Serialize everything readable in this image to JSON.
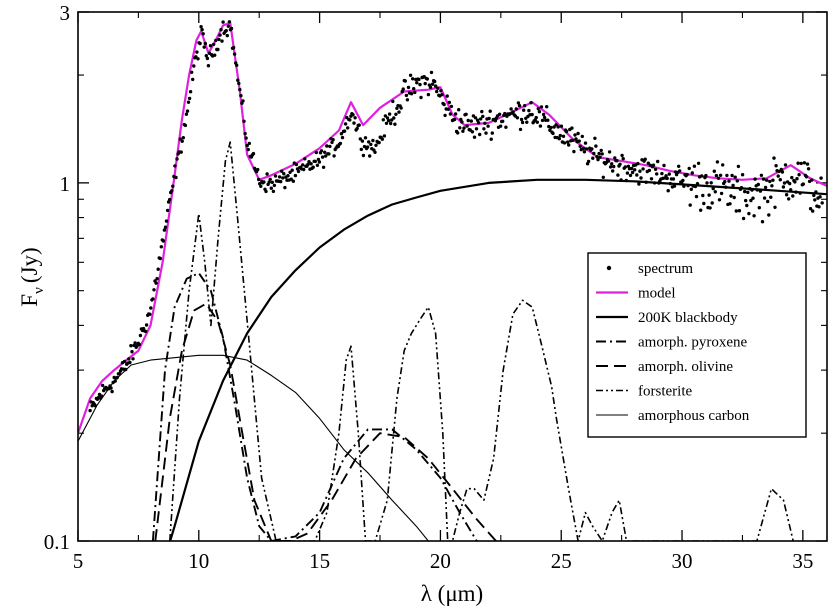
{
  "chart_data": {
    "type": "line",
    "x_scale": "linear",
    "y_scale": "log",
    "xlim": [
      5,
      36
    ],
    "ylim": [
      0.1,
      3
    ],
    "xlabel": "λ (μm)",
    "ylabel_main": "F",
    "ylabel_sub": "ν",
    "ylabel_unit": "(Jy)",
    "x_ticks": [
      5,
      10,
      15,
      20,
      25,
      30,
      35
    ],
    "x_tick_labels": [
      "5",
      "10",
      "15",
      "20",
      "25",
      "30",
      "35"
    ],
    "y_ticks": [
      0.1,
      1,
      3
    ],
    "y_tick_labels": [
      "0.1",
      "1",
      "3"
    ],
    "legend_position": "right",
    "colors": {
      "model": "#e020e0",
      "black": "#000000"
    },
    "legend": [
      {
        "key": "spectrum",
        "label": "spectrum",
        "symbol": "dot"
      },
      {
        "key": "model",
        "label": "model",
        "symbol": "line"
      },
      {
        "key": "bb",
        "label": "200K blackbody",
        "symbol": "line"
      },
      {
        "key": "pyrox",
        "label": "amorph. pyroxene",
        "symbol": "line"
      },
      {
        "key": "olivine",
        "label": "amorph. olivine",
        "symbol": "line"
      },
      {
        "key": "forst",
        "label": "forsterite",
        "symbol": "line"
      },
      {
        "key": "carbon",
        "label": "amorphous carbon",
        "symbol": "line"
      }
    ],
    "series": [
      {
        "key": "model",
        "name": "model",
        "color": "#e020e0",
        "width": 2.2,
        "dash": "",
        "x": [
          5,
          5.5,
          6,
          6.5,
          7,
          7.5,
          8,
          8.5,
          9,
          9.3,
          9.6,
          9.9,
          10.1,
          10.4,
          10.7,
          11,
          11.3,
          11.7,
          12,
          12.5,
          13,
          14,
          15,
          15.8,
          16.3,
          16.8,
          17.5,
          18.5,
          19.5,
          20,
          20.5,
          21,
          22,
          23,
          23.8,
          24.5,
          25.5,
          26.5,
          27.5,
          28.5,
          29.5,
          30.5,
          31.5,
          32.5,
          33.5,
          34.5,
          35.3,
          36
        ],
        "y": [
          0.2,
          0.25,
          0.28,
          0.3,
          0.32,
          0.34,
          0.4,
          0.6,
          1.05,
          1.5,
          2.0,
          2.5,
          2.65,
          2.3,
          2.5,
          2.75,
          2.8,
          1.8,
          1.2,
          1.02,
          1.05,
          1.13,
          1.25,
          1.4,
          1.68,
          1.45,
          1.62,
          1.8,
          1.82,
          1.85,
          1.55,
          1.45,
          1.47,
          1.58,
          1.68,
          1.55,
          1.32,
          1.18,
          1.15,
          1.12,
          1.08,
          1.05,
          1.03,
          1.02,
          1.03,
          1.12,
          1.03,
          0.98
        ]
      },
      {
        "key": "bb",
        "name": "200K blackbody",
        "color": "#000000",
        "width": 2.2,
        "dash": "",
        "x": [
          8.5,
          9,
          10,
          11,
          12,
          13,
          14,
          15,
          16,
          17,
          18,
          19,
          20,
          22,
          24,
          26,
          28,
          30,
          32,
          34,
          36
        ],
        "y": [
          0.085,
          0.11,
          0.19,
          0.28,
          0.38,
          0.48,
          0.57,
          0.66,
          0.74,
          0.81,
          0.87,
          0.91,
          0.95,
          1.0,
          1.02,
          1.02,
          1.01,
          0.99,
          0.97,
          0.95,
          0.93
        ]
      },
      {
        "key": "pyrox",
        "name": "amorph. pyroxene",
        "color": "#000000",
        "width": 1.9,
        "dash": "10 4 2 4",
        "x": [
          8.1,
          8.6,
          9,
          9.5,
          10,
          10.5,
          11,
          11.5,
          12,
          12.5,
          13,
          14,
          15,
          16,
          17,
          18,
          19,
          20,
          20.8,
          21.5
        ],
        "y": [
          0.1,
          0.3,
          0.45,
          0.54,
          0.56,
          0.5,
          0.37,
          0.24,
          0.15,
          0.11,
          0.1,
          0.103,
          0.12,
          0.17,
          0.205,
          0.205,
          0.18,
          0.15,
          0.12,
          0.1
        ]
      },
      {
        "key": "olivine",
        "name": "amorph. olivine",
        "color": "#000000",
        "width": 1.9,
        "dash": "12 6",
        "x": [
          8.2,
          8.8,
          9.3,
          9.8,
          10.3,
          10.8,
          11.3,
          11.8,
          12.3,
          13,
          13.8,
          14.5,
          15.5,
          16.5,
          17.5,
          18.5,
          19.5,
          20.5,
          21.5,
          22.3
        ],
        "y": [
          0.1,
          0.22,
          0.34,
          0.44,
          0.46,
          0.41,
          0.31,
          0.2,
          0.13,
          0.1,
          0.1,
          0.105,
          0.13,
          0.17,
          0.2,
          0.195,
          0.17,
          0.14,
          0.115,
          0.1
        ]
      },
      {
        "key": "forst",
        "name": "forsterite",
        "color": "#000000",
        "width": 1.6,
        "dash": "7 3 2 3 2 3",
        "x": [
          8.8,
          9.2,
          9.6,
          10,
          10.25,
          10.5,
          10.8,
          11.1,
          11.3,
          11.6,
          12.1,
          12.6,
          13.2,
          14,
          14.8,
          15.3,
          15.8,
          16.1,
          16.3,
          16.6,
          16.9,
          17.3,
          17.8,
          18.2,
          18.5,
          18.8,
          19.2,
          19.5,
          19.8,
          20.1,
          20.3,
          20.5,
          20.8,
          21.1,
          21.4,
          21.8,
          22.2,
          22.6,
          23,
          23.4,
          23.8,
          24.2,
          24.6,
          24.8,
          25.3,
          25.7,
          26,
          26.3,
          26.7,
          27.1,
          27.4,
          27.7,
          28.1,
          28.5,
          30,
          32,
          33.1,
          33.7,
          34.2,
          34.6
        ],
        "y": [
          0.1,
          0.25,
          0.5,
          0.82,
          0.6,
          0.4,
          0.7,
          1.15,
          1.3,
          0.8,
          0.35,
          0.15,
          0.1,
          0.1,
          0.1,
          0.12,
          0.2,
          0.32,
          0.35,
          0.2,
          0.1,
          0.1,
          0.13,
          0.25,
          0.34,
          0.38,
          0.42,
          0.45,
          0.38,
          0.2,
          0.1,
          0.1,
          0.12,
          0.14,
          0.14,
          0.13,
          0.17,
          0.3,
          0.43,
          0.47,
          0.45,
          0.35,
          0.27,
          0.22,
          0.14,
          0.1,
          0.12,
          0.11,
          0.1,
          0.12,
          0.13,
          0.1,
          0.1,
          0.1,
          0.1,
          0.1,
          0.1,
          0.14,
          0.13,
          0.1
        ]
      },
      {
        "key": "carbon",
        "name": "amorphous carbon",
        "color": "#000000",
        "width": 1.1,
        "dash": "",
        "x": [
          5,
          5.8,
          6.5,
          7.2,
          8,
          9,
          10,
          11,
          12,
          13,
          14,
          15,
          16,
          17,
          18,
          19,
          19.5
        ],
        "y": [
          0.19,
          0.24,
          0.28,
          0.31,
          0.32,
          0.325,
          0.33,
          0.33,
          0.32,
          0.29,
          0.26,
          0.22,
          0.18,
          0.155,
          0.13,
          0.11,
          0.1
        ]
      }
    ],
    "spectrum_trend": {
      "name": "spectrum",
      "x": [
        5.5,
        6,
        6.5,
        7,
        7.5,
        8,
        8.5,
        9,
        9.5,
        9.8,
        10.1,
        10.4,
        10.7,
        11,
        11.3,
        11.6,
        12,
        12.5,
        13,
        14,
        15,
        15.8,
        16.3,
        16.8,
        17.3,
        17.8,
        18.5,
        19.2,
        19.7,
        20.2,
        20.7,
        21.2,
        22,
        23,
        23.7,
        24.5,
        25.5,
        26.5,
        27.5,
        28.5,
        29.5,
        30.5,
        31.5,
        32.5,
        33.5,
        34.3,
        35,
        35.8
      ],
      "y": [
        0.23,
        0.26,
        0.28,
        0.31,
        0.36,
        0.44,
        0.68,
        1.05,
        1.55,
        2.1,
        2.6,
        2.2,
        2.45,
        2.7,
        2.75,
        2.0,
        1.3,
        1.02,
        0.99,
        1.06,
        1.16,
        1.3,
        1.58,
        1.3,
        1.25,
        1.48,
        1.76,
        1.92,
        1.9,
        1.65,
        1.5,
        1.43,
        1.48,
        1.55,
        1.6,
        1.45,
        1.3,
        1.18,
        1.12,
        1.08,
        1.04,
        1.0,
        0.98,
        0.92,
        0.95,
        1.05,
        1.02,
        0.9
      ],
      "n_points": 700
    }
  }
}
